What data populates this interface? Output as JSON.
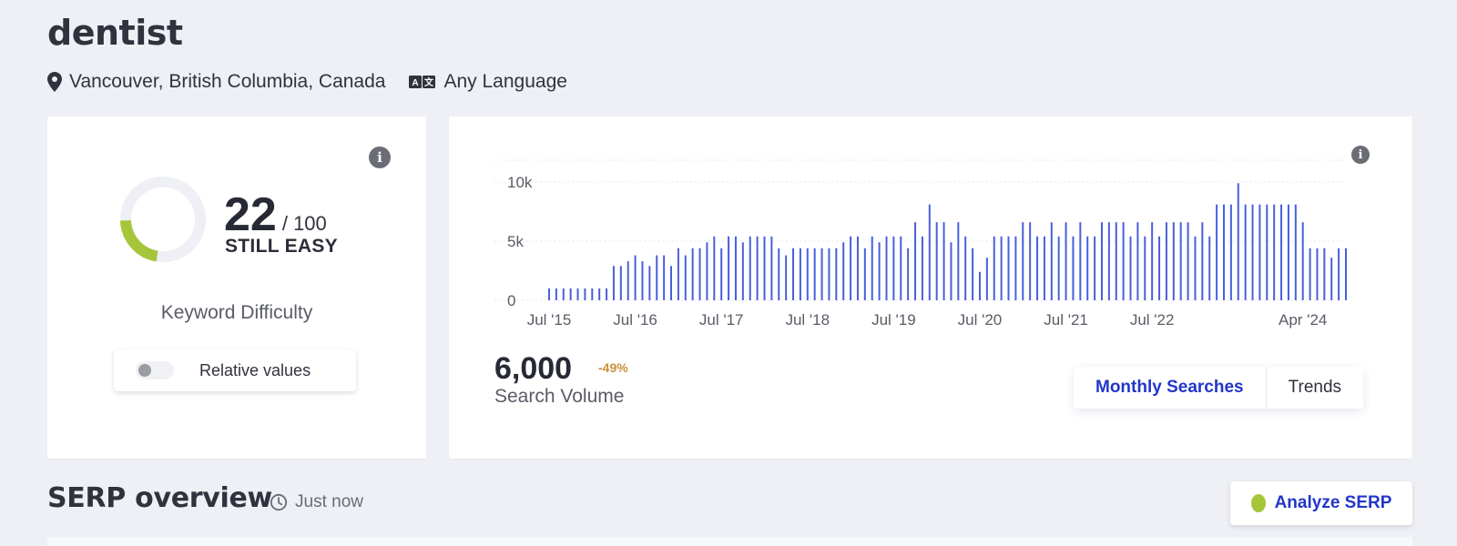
{
  "keyword": "dentist",
  "location": "Vancouver, British Columbia, Canada",
  "language": "Any Language",
  "difficulty": {
    "score": "22",
    "max_label": "/ 100",
    "rank_label": "STILL EASY",
    "caption": "Keyword Difficulty",
    "score_fraction": 0.22,
    "gauge_color": "#a5c63b",
    "track_color": "#eef0f5"
  },
  "relative_toggle": {
    "label": "Relative values",
    "on": false
  },
  "volume": {
    "value": "6,000",
    "change": "-49%",
    "label": "Search Volume"
  },
  "view_tabs": {
    "active": "Monthly Searches",
    "other": "Trends"
  },
  "serp": {
    "title": "SERP overview",
    "time": "Just now",
    "analyze_label": "Analyze SERP"
  },
  "colors": {
    "accent": "#2236c8",
    "bar": "#4a5fdc",
    "negative_change": "#c8913a"
  },
  "chart_data": {
    "type": "bar",
    "ylim": [
      0,
      12000
    ],
    "yticks": [
      {
        "value": 0,
        "label": "0"
      },
      {
        "value": 5000,
        "label": "5k"
      },
      {
        "value": 10000,
        "label": "10k"
      }
    ],
    "xtick_labels": [
      "Jul '15",
      "Jul '16",
      "Jul '17",
      "Jul '18",
      "Jul '19",
      "Jul '20",
      "Jul '21",
      "Jul '22",
      "Apr '24"
    ],
    "xtick_indices": [
      0,
      12,
      24,
      36,
      48,
      60,
      72,
      84,
      105
    ],
    "first_month": "Jul 2015",
    "values": [
      1000,
      1000,
      1000,
      1000,
      1000,
      1000,
      1000,
      1000,
      1000,
      2900,
      2900,
      3300,
      3800,
      3300,
      2900,
      3800,
      3800,
      2900,
      4400,
      3800,
      4400,
      4400,
      4900,
      5400,
      4400,
      5400,
      5400,
      4900,
      5400,
      5400,
      5400,
      5400,
      4400,
      3800,
      4400,
      4400,
      4400,
      4400,
      4400,
      4400,
      4400,
      4900,
      5400,
      5400,
      4400,
      5400,
      4900,
      5400,
      5400,
      5400,
      4400,
      6600,
      5400,
      8100,
      6600,
      6600,
      4900,
      6600,
      5400,
      4400,
      2400,
      3600,
      5400,
      5400,
      5400,
      5400,
      6600,
      6600,
      5400,
      5400,
      6600,
      5400,
      6600,
      5400,
      6600,
      5400,
      5400,
      6600,
      6600,
      6600,
      6600,
      5400,
      6600,
      5400,
      6600,
      5400,
      6600,
      6600,
      6600,
      6600,
      5400,
      6600,
      5400,
      8100,
      8100,
      8100,
      9900,
      8100,
      8100,
      8100,
      8100,
      8100,
      8100,
      8100,
      8100,
      6600,
      4400,
      4400,
      4400,
      3600,
      4400,
      4400
    ]
  }
}
